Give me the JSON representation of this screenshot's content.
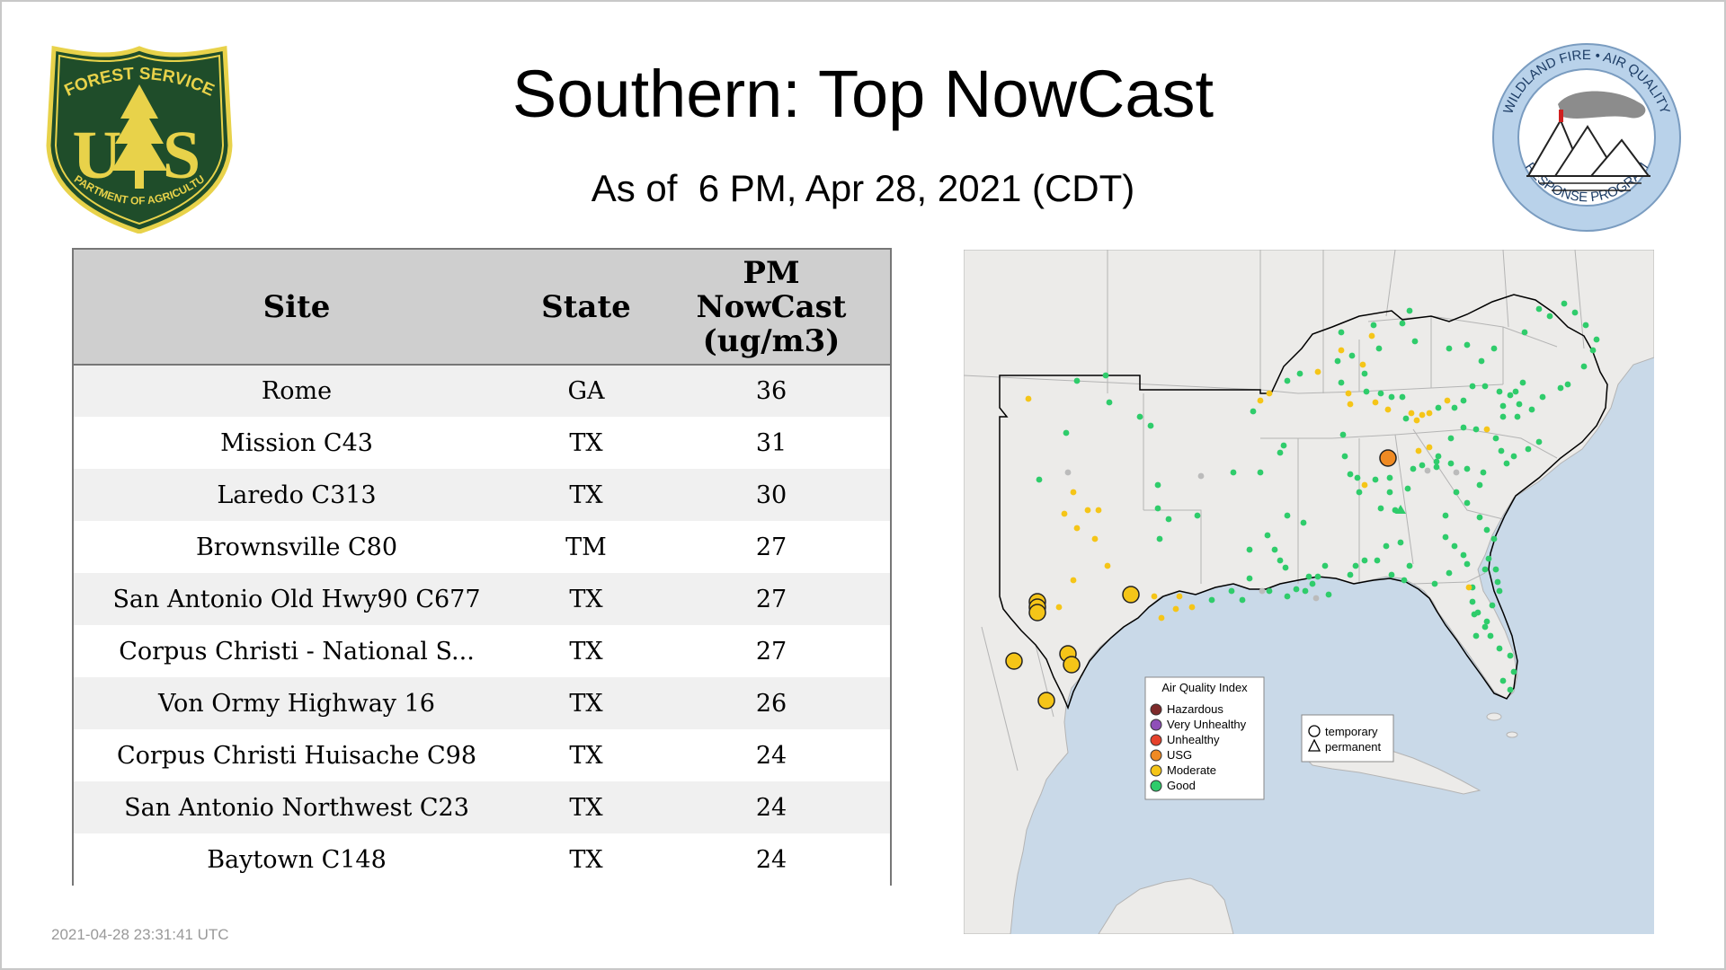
{
  "header": {
    "title": "Southern: Top NowCast",
    "subtitle": "As of  6 PM, Apr 28, 2021 (CDT)"
  },
  "logos": {
    "left": {
      "line1": "FOREST SERVICE",
      "letters": "U S",
      "line2": "DEPARTMENT OF AGRICULTURE"
    },
    "right": {
      "top": "WILDLAND FIRE • AIR QUALITY",
      "bottom": "RESPONSE PROGRAM"
    }
  },
  "table": {
    "columns": [
      "Site",
      "State",
      "PM\nNowCast\n(ug/m3)"
    ],
    "column_lines": [
      [
        "Site"
      ],
      [
        "State"
      ],
      [
        "PM",
        "NowCast",
        "(ug/m3)"
      ]
    ],
    "rows": [
      {
        "site": "Rome",
        "state": "GA",
        "value": "36"
      },
      {
        "site": "Mission C43",
        "state": "TX",
        "value": "31"
      },
      {
        "site": "Laredo C313",
        "state": "TX",
        "value": "30"
      },
      {
        "site": "Brownsville C80",
        "state": "TM",
        "value": "27"
      },
      {
        "site": "San Antonio Old Hwy90 C677",
        "state": "TX",
        "value": "27"
      },
      {
        "site": "Corpus Christi - National S...",
        "state": "TX",
        "value": "27"
      },
      {
        "site": "Von Ormy Highway 16",
        "state": "TX",
        "value": "26"
      },
      {
        "site": "Corpus Christi Huisache C98",
        "state": "TX",
        "value": "24"
      },
      {
        "site": "San Antonio Northwest C23",
        "state": "TX",
        "value": "24"
      },
      {
        "site": "Baytown C148",
        "state": "TX",
        "value": "24"
      }
    ]
  },
  "map": {
    "legend": {
      "title": "Air Quality Index",
      "items": [
        {
          "label": "Hazardous",
          "color": "#7e2a2a"
        },
        {
          "label": "Very Unhealthy",
          "color": "#8f4fb8"
        },
        {
          "label": "Unhealthy",
          "color": "#e5412b"
        },
        {
          "label": "USG",
          "color": "#ef8a23"
        },
        {
          "label": "Moderate",
          "color": "#f5c518"
        },
        {
          "label": "Good",
          "color": "#2fcc6b"
        }
      ]
    },
    "type_legend": [
      {
        "label": "temporary",
        "shape": "circle"
      },
      {
        "label": "permanent",
        "shape": "triangle"
      }
    ],
    "colors": {
      "water": "#c9d9e8",
      "land": "#ecebe9",
      "border": "#b4b4b4",
      "region": "#000000"
    }
  },
  "footer": {
    "timestamp": "2021-04-28 23:31:41 UTC"
  }
}
